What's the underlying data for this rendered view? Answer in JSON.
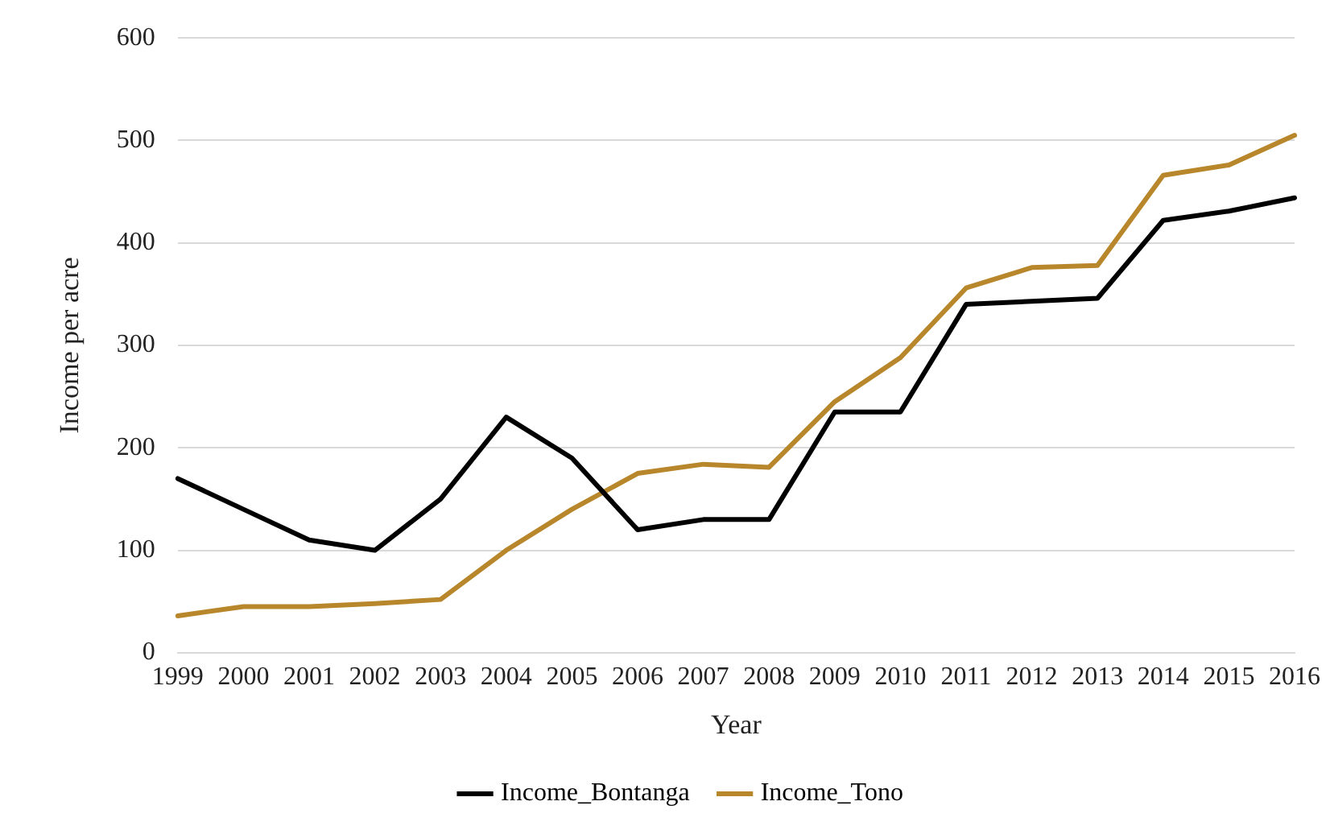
{
  "chart_data": {
    "type": "line",
    "xlabel": "Year",
    "ylabel": "Income per acre",
    "categories": [
      "1999",
      "2000",
      "2001",
      "2002",
      "2003",
      "2004",
      "2005",
      "2006",
      "2007",
      "2008",
      "2009",
      "2010",
      "2011",
      "2012",
      "2013",
      "2014",
      "2015",
      "2016"
    ],
    "series": [
      {
        "name": "Income_Bontanga",
        "color": "#000000",
        "values": [
          170,
          140,
          110,
          100,
          150,
          230,
          190,
          120,
          130,
          130,
          235,
          235,
          340,
          343,
          346,
          422,
          431,
          444
        ]
      },
      {
        "name": "Income_Tono",
        "color": "#b8862b",
        "values": [
          36,
          45,
          45,
          48,
          52,
          100,
          140,
          175,
          184,
          181,
          245,
          288,
          356,
          376,
          378,
          466,
          476,
          505
        ]
      }
    ],
    "ylim": [
      0,
      600
    ],
    "yticks": [
      0,
      100,
      200,
      300,
      400,
      500,
      600
    ],
    "grid": "y",
    "legend": "bottom",
    "marker": "none",
    "line_style": "solid"
  }
}
